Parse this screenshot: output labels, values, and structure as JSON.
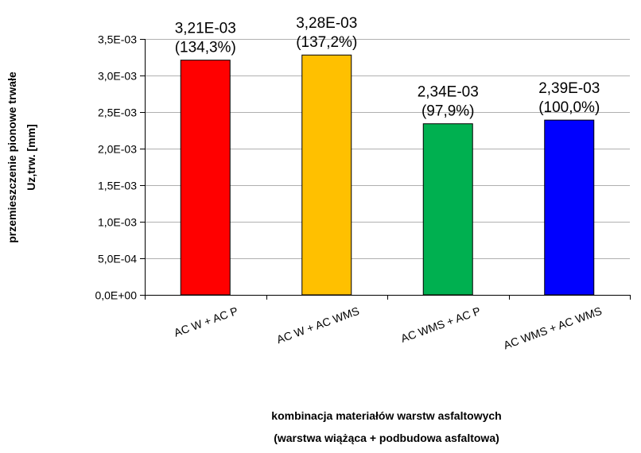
{
  "chart_data": {
    "type": "bar",
    "title": "",
    "categories": [
      "AC W + AC P",
      "AC W + AC WMS",
      "AC WMS + AC P",
      "AC WMS + AC WMS"
    ],
    "values": [
      0.00321,
      0.00328,
      0.00234,
      0.00239
    ],
    "value_labels": [
      "3,21E-03",
      "3,28E-03",
      "2,34E-03",
      "2,39E-03"
    ],
    "percent_labels": [
      "(134,3%)",
      "(137,2%)",
      "(97,9%)",
      "(100,0%)"
    ],
    "bar_colors": [
      "#ff0000",
      "#ffc000",
      "#00b050",
      "#0000ff"
    ],
    "ylim": [
      0,
      0.0035
    ],
    "yticks": [
      "0,0E+00",
      "5,0E-04",
      "1,0E-03",
      "1,5E-03",
      "2,0E-03",
      "2,5E-03",
      "3,0E-03",
      "3,5E-03"
    ],
    "ylabel_line1": "przemieszczenie pionowe trwałe",
    "ylabel_line2": "Uz,trw. [mm]",
    "xlabel_line1": "kombinacja  materiałów warstw asfaltowych",
    "xlabel_line2": "(warstwa wiążąca  + podbudowa asfaltowa)",
    "grid": true,
    "legend": "none"
  }
}
